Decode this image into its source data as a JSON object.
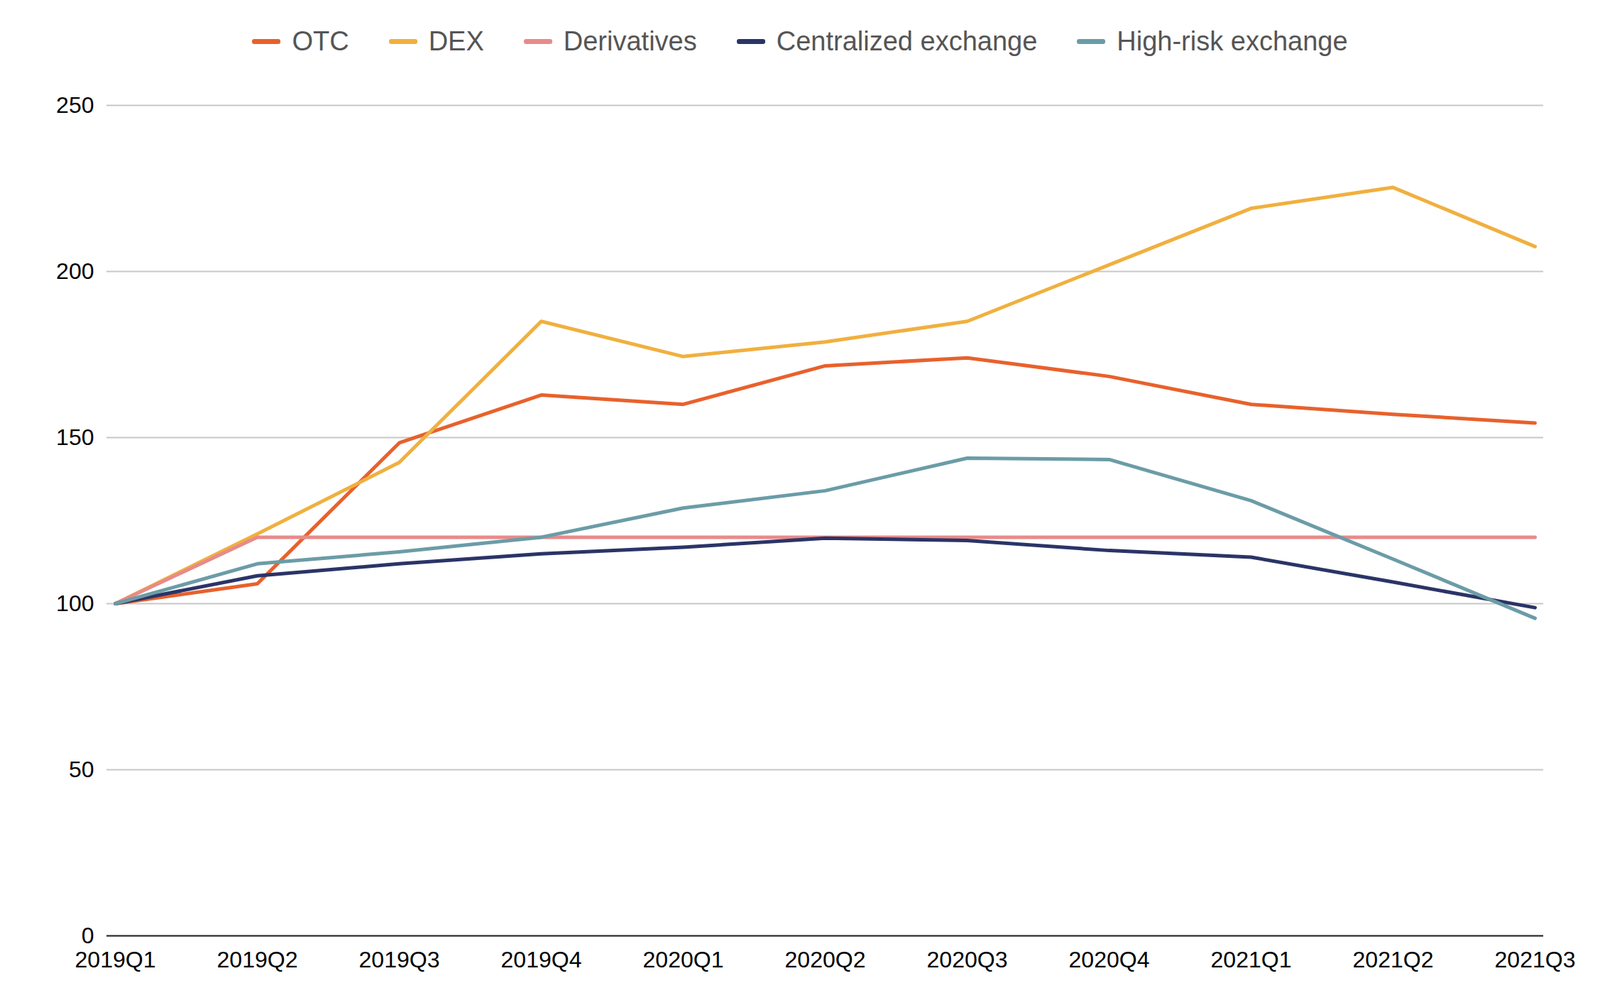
{
  "chart_data": {
    "type": "line",
    "categories": [
      "2019Q1",
      "2019Q2",
      "2019Q3",
      "2019Q4",
      "2020Q1",
      "2020Q2",
      "2020Q3",
      "2020Q4",
      "2021Q1",
      "2021Q2",
      "2021Q3"
    ],
    "series": [
      {
        "name": "OTC",
        "color": "#e8612c",
        "values": [
          100,
          106,
          148.4,
          162.8,
          160,
          171.6,
          174,
          168.4,
          160,
          157,
          154.4
        ]
      },
      {
        "name": "DEX",
        "color": "#f0b03f",
        "values": [
          100,
          121,
          142.5,
          185,
          174.4,
          178.8,
          185,
          202,
          219,
          225.3,
          207.5
        ]
      },
      {
        "name": "Derivatives",
        "color": "#e88a8a",
        "values": [
          100,
          120,
          120,
          120,
          120,
          120,
          120,
          120,
          120,
          120,
          120
        ]
      },
      {
        "name": "Centralized exchange",
        "color": "#2b3467",
        "values": [
          100,
          108.4,
          112,
          115,
          117,
          119.7,
          119,
          116,
          114,
          106.5,
          98.8
        ]
      },
      {
        "name": "High-risk exchange",
        "color": "#6b9ca7",
        "values": [
          100,
          112,
          115.6,
          120,
          128.8,
          134,
          143.8,
          143.4,
          131,
          113.4,
          95.6
        ]
      }
    ],
    "ylim": [
      0,
      250
    ],
    "yticks": [
      0,
      50,
      100,
      150,
      200,
      250
    ],
    "grid": true,
    "legend": "top"
  }
}
